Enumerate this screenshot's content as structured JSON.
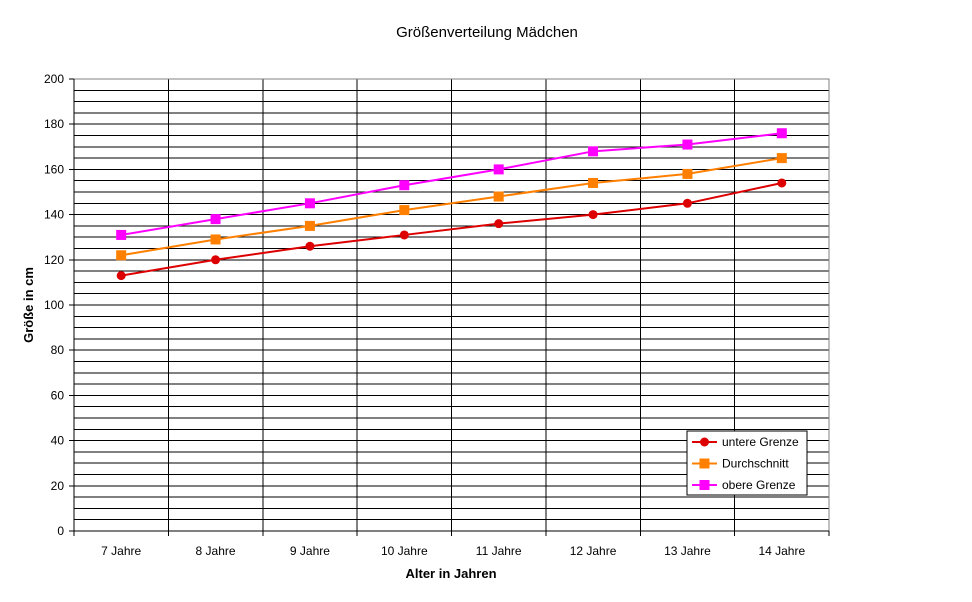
{
  "chart_data": {
    "type": "line",
    "title": "Größenverteilung Mädchen",
    "xlabel": "Alter in Jahren",
    "ylabel": "Größe in cm",
    "categories": [
      "7 Jahre",
      "8 Jahre",
      "9 Jahre",
      "10 Jahre",
      "11 Jahre",
      "12 Jahre",
      "13 Jahre",
      "14 Jahre"
    ],
    "ylim": [
      0,
      200
    ],
    "y_major_step": 20,
    "y_minor_step": 5,
    "grid": true,
    "legend_position": "bottom-right",
    "series": [
      {
        "name": "untere Grenze",
        "marker": "circle",
        "color": "#dd0000",
        "values": [
          113,
          120,
          126,
          131,
          136,
          140,
          145,
          154
        ]
      },
      {
        "name": "Durchschnitt",
        "marker": "square",
        "color": "#ff8000",
        "values": [
          122,
          129,
          135,
          142,
          148,
          154,
          158,
          165
        ]
      },
      {
        "name": "obere Grenze",
        "marker": "square",
        "color": "#ff00ff",
        "values": [
          131,
          138,
          145,
          153,
          160,
          168,
          171,
          176
        ]
      }
    ]
  }
}
